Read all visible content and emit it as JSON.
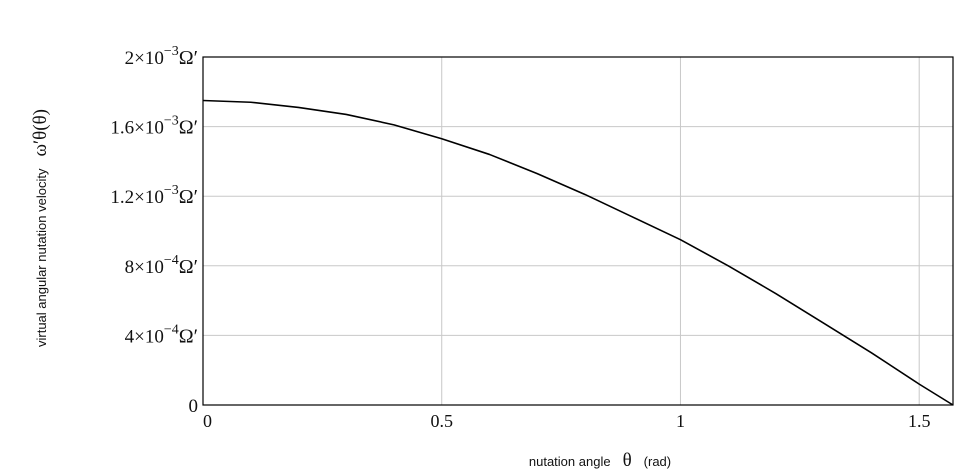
{
  "chart_data": {
    "type": "line",
    "title": "",
    "xlabel": {
      "text": "nutation angle",
      "symbol": "θ",
      "unit": "(rad)"
    },
    "ylabel": {
      "text": "virtual angular nutation velocity",
      "symbol": "ω′θ(θ)"
    },
    "xlim": [
      0,
      1.5708
    ],
    "ylim": [
      0,
      0.002
    ],
    "grid": true,
    "legend": "none",
    "x_ticks": [
      {
        "value": 0,
        "label": "0"
      },
      {
        "value": 0.5,
        "label": "0.5"
      },
      {
        "value": 1,
        "label": "1"
      },
      {
        "value": 1.5,
        "label": "1.5"
      }
    ],
    "y_ticks": [
      {
        "value": 0,
        "coef": "0",
        "exp": "",
        "unit": ""
      },
      {
        "value": 0.0004,
        "coef": "4×10",
        "exp": "−4",
        "unit": "Ω′"
      },
      {
        "value": 0.0008,
        "coef": "8×10",
        "exp": "−4",
        "unit": "Ω′"
      },
      {
        "value": 0.0012,
        "coef": "1.2×10",
        "exp": "−3",
        "unit": "Ω′"
      },
      {
        "value": 0.0016,
        "coef": "1.6×10",
        "exp": "−3",
        "unit": "Ω′"
      },
      {
        "value": 0.002,
        "coef": "2×10",
        "exp": "−3",
        "unit": "Ω′"
      }
    ],
    "series": [
      {
        "color": "#000000",
        "x": [
          0,
          0.1,
          0.2,
          0.3,
          0.4,
          0.5,
          0.6,
          0.7,
          0.8,
          0.9,
          1.0,
          1.1,
          1.2,
          1.3,
          1.4,
          1.5,
          1.5708
        ],
        "y": [
          0.00175,
          0.00174,
          0.00171,
          0.00167,
          0.00161,
          0.00153,
          0.00144,
          0.00133,
          0.00121,
          0.00108,
          0.00095,
          0.0008,
          0.00064,
          0.00047,
          0.0003,
          0.00012,
          0.0
        ]
      }
    ]
  }
}
